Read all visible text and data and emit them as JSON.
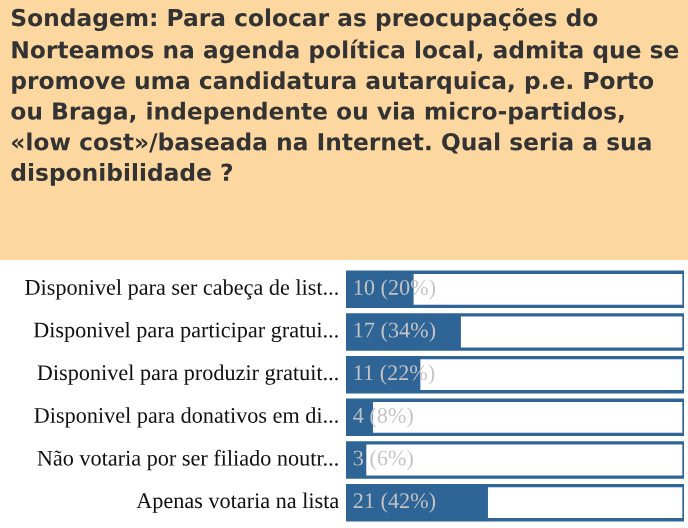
{
  "chart_data": {
    "type": "bar",
    "orientation": "horizontal",
    "title": "Sondagem: Para colocar as preocupações do Norteamos na agenda política local, admita que se promove uma candidatura autarquica, p.e. Porto ou Braga, independente ou via micro-partidos, «low cost»/baseada na Internet. Qual seria a sua disponibilidade ?",
    "categories": [
      "Disponivel para ser cabeça de list...",
      "Disponivel para participar gratui...",
      "Disponivel para produzir gratuit...",
      "Disponivel para donativos em di...",
      "Não votaria por ser filiado noutr...",
      "Apenas votaria na lista"
    ],
    "values": [
      10,
      17,
      11,
      4,
      3,
      21
    ],
    "value_labels": [
      "10 (20%)",
      "17 (34%)",
      "11 (22%)",
      "4 (8%)",
      "3 (6%)",
      "21 (42%)"
    ],
    "color": "#2e6496",
    "xlim": [
      0,
      50
    ]
  }
}
